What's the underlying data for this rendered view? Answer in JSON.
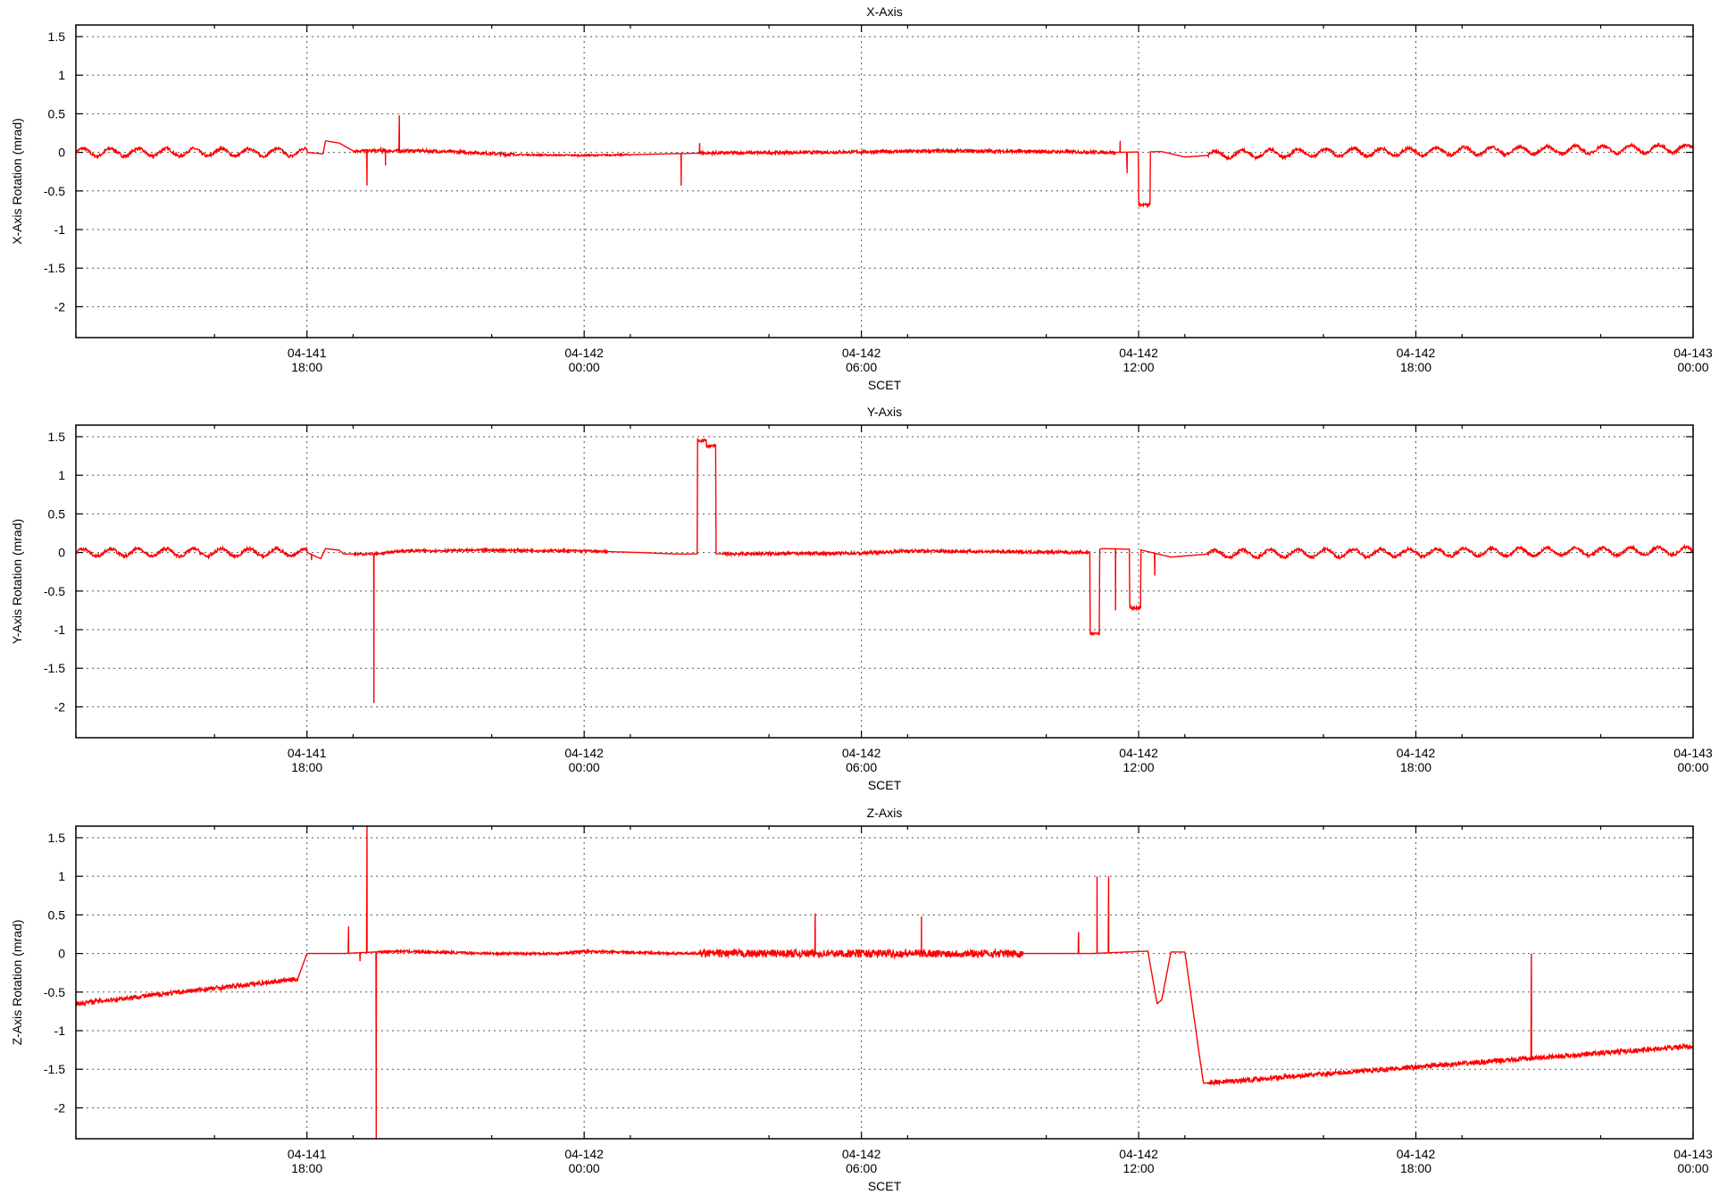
{
  "chart_data": [
    {
      "type": "line",
      "title": "X-Axis",
      "xlabel": "SCET",
      "ylabel": "X-Axis Rotation (mrad)",
      "x_unit": "hours (04-141 12:00 = 0)",
      "xlim": [
        -3.0,
        32.0
      ],
      "ylim": [
        -2.4,
        1.65
      ],
      "yticks": [
        1.5,
        1,
        0.5,
        0,
        -0.5,
        -1,
        -1.5,
        -2
      ],
      "ytick_labels": [
        "1.5",
        "1",
        "0.5",
        "0",
        "-0.5",
        "-1",
        "-1.5",
        "-2"
      ],
      "xticks": [
        2,
        8,
        14,
        20,
        26,
        32
      ],
      "xtick_labels": [
        [
          "04-141",
          "18:00"
        ],
        [
          "04-142",
          "00:00"
        ],
        [
          "04-142",
          "06:00"
        ],
        [
          "04-142",
          "12:00"
        ],
        [
          "04-142",
          "18:00"
        ],
        [
          "04-143",
          "00:00"
        ]
      ],
      "grid": true,
      "series": [
        {
          "color": "#ff0000",
          "baseline": [
            [
              -3.0,
              0.0
            ],
            [
              2.0,
              0.0
            ],
            [
              2.35,
              -0.02
            ],
            [
              2.4,
              0.15
            ],
            [
              2.7,
              0.12
            ],
            [
              3.0,
              0.02
            ],
            [
              4.5,
              0.02
            ],
            [
              5.5,
              0.0
            ],
            [
              6.5,
              -0.03
            ],
            [
              8.0,
              -0.04
            ],
            [
              9.0,
              -0.03
            ],
            [
              10.5,
              -0.01
            ],
            [
              13.0,
              0.0
            ],
            [
              16.0,
              0.02
            ],
            [
              18.0,
              0.01
            ],
            [
              19.5,
              0.0
            ],
            [
              20.5,
              0.01
            ],
            [
              21.0,
              -0.06
            ],
            [
              22.0,
              -0.02
            ],
            [
              32.0,
              0.05
            ]
          ],
          "oscillation": [
            {
              "from": -3.0,
              "to": 2.0,
              "amplitude": 0.05,
              "period": 0.6
            },
            {
              "from": 21.5,
              "to": 32.0,
              "amplitude": 0.05,
              "period": 0.6
            }
          ],
          "noise": [
            {
              "from": 3.0,
              "to": 6.5,
              "amplitude": 0.02
            },
            {
              "from": 6.5,
              "to": 9.0,
              "amplitude": 0.01
            },
            {
              "from": 10.5,
              "to": 19.5,
              "amplitude": 0.02
            },
            {
              "from": -3.0,
              "to": 2.0,
              "amplitude": 0.02
            },
            {
              "from": 21.5,
              "to": 32.0,
              "amplitude": 0.02
            }
          ],
          "spikes": [
            [
              3.3,
              -0.43
            ],
            [
              3.6,
              0.07
            ],
            [
              3.7,
              -0.17
            ],
            [
              4.0,
              0.48
            ],
            [
              10.1,
              -0.43
            ],
            [
              10.5,
              0.12
            ],
            [
              19.6,
              0.15
            ],
            [
              19.75,
              -0.27
            ]
          ],
          "plateaus": [
            {
              "from": 20.0,
              "to": 20.25,
              "value": -0.68
            }
          ]
        }
      ]
    },
    {
      "type": "line",
      "title": "Y-Axis",
      "xlabel": "SCET",
      "ylabel": "Y-Axis Rotation (mrad)",
      "x_unit": "hours (04-141 12:00 = 0)",
      "xlim": [
        -3.0,
        32.0
      ],
      "ylim": [
        -2.4,
        1.65
      ],
      "yticks": [
        1.5,
        1,
        0.5,
        0,
        -0.5,
        -1,
        -1.5,
        -2
      ],
      "ytick_labels": [
        "1.5",
        "1",
        "0.5",
        "0",
        "-0.5",
        "-1",
        "-1.5",
        "-2"
      ],
      "xticks": [
        2,
        8,
        14,
        20,
        26,
        32
      ],
      "xtick_labels": [
        [
          "04-141",
          "18:00"
        ],
        [
          "04-142",
          "00:00"
        ],
        [
          "04-142",
          "06:00"
        ],
        [
          "04-142",
          "12:00"
        ],
        [
          "04-142",
          "18:00"
        ],
        [
          "04-143",
          "00:00"
        ]
      ],
      "grid": true,
      "series": [
        {
          "color": "#ff0000",
          "baseline": [
            [
              -3.0,
              0.0
            ],
            [
              2.0,
              0.0
            ],
            [
              2.3,
              -0.08
            ],
            [
              2.4,
              0.05
            ],
            [
              2.7,
              0.03
            ],
            [
              2.8,
              -0.02
            ],
            [
              3.5,
              -0.02
            ],
            [
              4.0,
              0.02
            ],
            [
              6.0,
              0.03
            ],
            [
              8.0,
              0.02
            ],
            [
              9.2,
              0.0
            ],
            [
              10.0,
              -0.02
            ],
            [
              14.0,
              -0.01
            ],
            [
              15.0,
              0.02
            ],
            [
              19.0,
              0.0
            ],
            [
              19.2,
              0.05
            ],
            [
              20.0,
              0.04
            ],
            [
              20.7,
              -0.06
            ],
            [
              21.5,
              -0.02
            ],
            [
              32.0,
              0.02
            ]
          ],
          "oscillation": [
            {
              "from": -3.0,
              "to": 2.0,
              "amplitude": 0.05,
              "period": 0.6
            },
            {
              "from": 21.5,
              "to": 32.0,
              "amplitude": 0.05,
              "period": 0.6
            }
          ],
          "noise": [
            {
              "from": 3.0,
              "to": 8.5,
              "amplitude": 0.015
            },
            {
              "from": 11.0,
              "to": 19.0,
              "amplitude": 0.02
            },
            {
              "from": -3.0,
              "to": 2.0,
              "amplitude": 0.02
            },
            {
              "from": 21.5,
              "to": 32.0,
              "amplitude": 0.02
            }
          ],
          "spikes": [
            [
              3.45,
              -1.95
            ],
            [
              2.1,
              -0.1
            ],
            [
              19.5,
              -0.75
            ],
            [
              20.35,
              -0.3
            ]
          ],
          "plateaus": [
            {
              "from": 10.45,
              "to": 10.65,
              "value": 1.45
            },
            {
              "from": 10.65,
              "to": 10.85,
              "value": 1.38
            },
            {
              "from": 18.95,
              "to": 19.15,
              "value": -1.05
            },
            {
              "from": 19.8,
              "to": 20.05,
              "value": -0.72
            }
          ]
        }
      ]
    },
    {
      "type": "line",
      "title": "Z-Axis",
      "xlabel": "SCET",
      "ylabel": "Z-Axis Rotation (mrad)",
      "x_unit": "hours (04-141 12:00 = 0)",
      "xlim": [
        -3.0,
        32.0
      ],
      "ylim": [
        -2.4,
        1.65
      ],
      "yticks": [
        1.5,
        1,
        0.5,
        0,
        -0.5,
        -1,
        -1.5,
        -2
      ],
      "ytick_labels": [
        "1.5",
        "1",
        "0.5",
        "0",
        "-0.5",
        "-1",
        "-1.5",
        "-2"
      ],
      "xticks": [
        2,
        8,
        14,
        20,
        26,
        32
      ],
      "xtick_labels": [
        [
          "04-141",
          "18:00"
        ],
        [
          "04-142",
          "00:00"
        ],
        [
          "04-142",
          "06:00"
        ],
        [
          "04-142",
          "12:00"
        ],
        [
          "04-142",
          "18:00"
        ],
        [
          "04-143",
          "00:00"
        ]
      ],
      "grid": true,
      "series": [
        {
          "color": "#ff0000",
          "baseline": [
            [
              -3.0,
              -0.65
            ],
            [
              1.8,
              -0.33
            ],
            [
              2.0,
              0.0
            ],
            [
              2.8,
              0.0
            ],
            [
              3.5,
              0.02
            ],
            [
              4.0,
              0.03
            ],
            [
              6.0,
              0.0
            ],
            [
              7.5,
              0.0
            ],
            [
              8.0,
              0.03
            ],
            [
              10.0,
              0.0
            ],
            [
              11.0,
              0.0
            ],
            [
              17.0,
              0.0
            ],
            [
              19.0,
              0.0
            ],
            [
              20.2,
              0.03
            ],
            [
              20.4,
              -0.65
            ],
            [
              20.5,
              -0.6
            ],
            [
              20.7,
              0.02
            ],
            [
              21.0,
              0.02
            ],
            [
              21.4,
              -1.68
            ],
            [
              32.0,
              -1.2
            ]
          ],
          "oscillation": [],
          "noise": [
            {
              "from": -3.0,
              "to": 1.8,
              "amplitude": 0.03
            },
            {
              "from": 3.5,
              "to": 10.5,
              "amplitude": 0.015
            },
            {
              "from": 10.5,
              "to": 17.5,
              "amplitude": 0.05
            },
            {
              "from": 21.5,
              "to": 32.0,
              "amplitude": 0.03
            }
          ],
          "spikes": [
            [
              3.3,
              1.65
            ],
            [
              3.5,
              -2.4
            ],
            [
              2.9,
              0.35
            ],
            [
              3.15,
              -0.1
            ],
            [
              13.0,
              0.52
            ],
            [
              15.3,
              0.48
            ],
            [
              18.7,
              0.28
            ],
            [
              19.1,
              1.0
            ],
            [
              19.35,
              1.0
            ],
            [
              28.5,
              0.0
            ]
          ],
          "plateaus": []
        }
      ]
    }
  ]
}
